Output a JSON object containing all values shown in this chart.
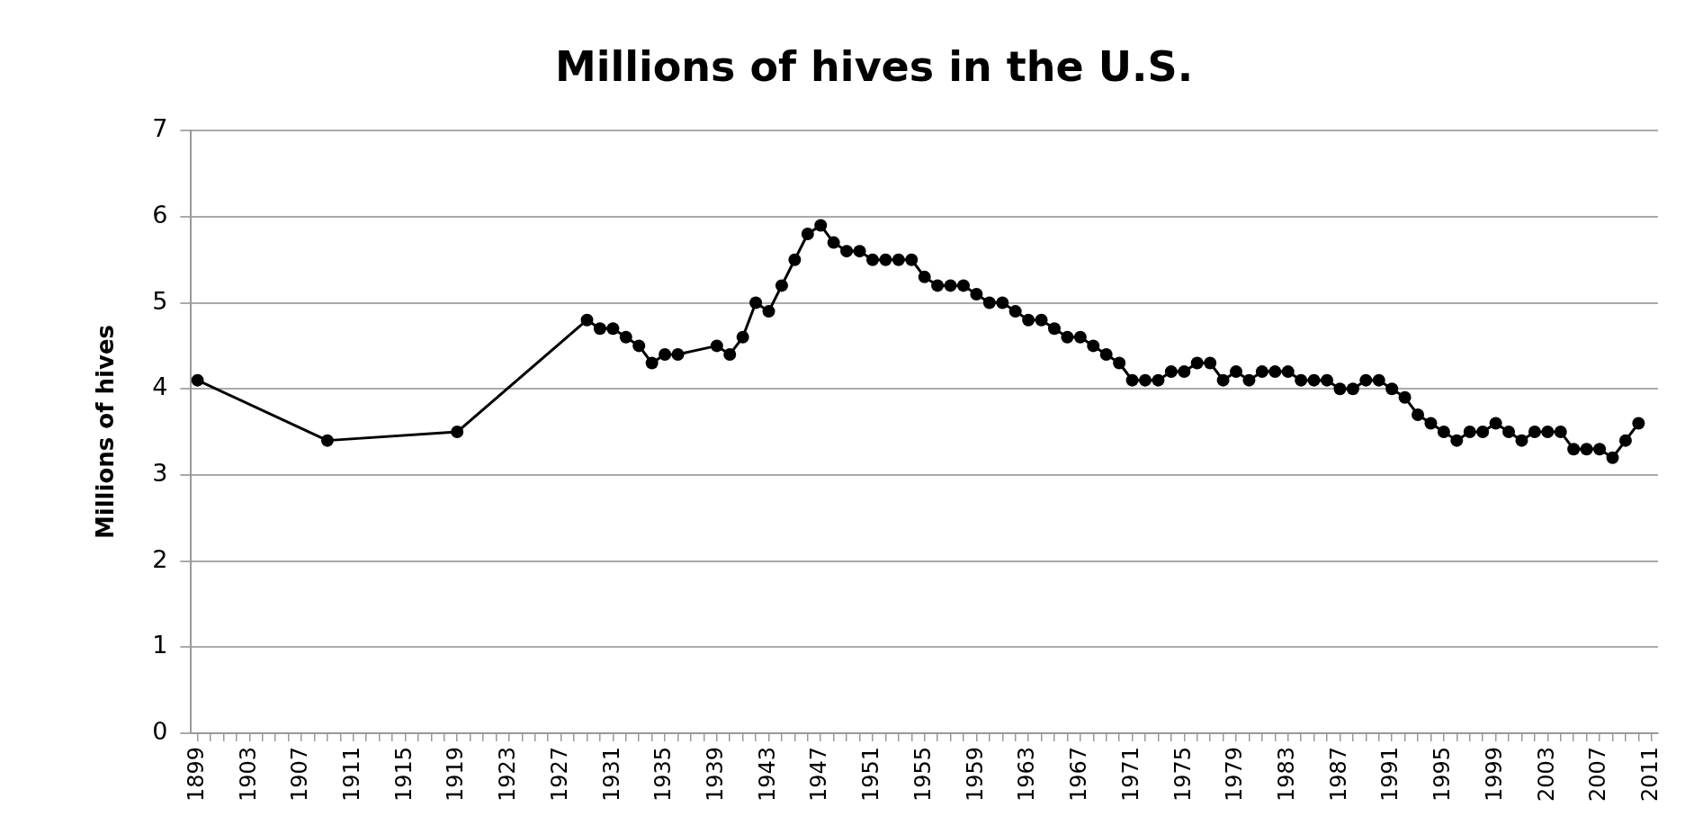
{
  "chart_data": {
    "type": "line",
    "title": "Millions of hives in the U.S.",
    "ylabel": "Millions of hives",
    "x": [
      1899,
      1909,
      1919,
      1929,
      1930,
      1931,
      1932,
      1933,
      1934,
      1935,
      1936,
      1939,
      1940,
      1941,
      1942,
      1943,
      1944,
      1945,
      1946,
      1947,
      1948,
      1949,
      1950,
      1951,
      1952,
      1953,
      1954,
      1955,
      1956,
      1957,
      1958,
      1959,
      1960,
      1961,
      1962,
      1963,
      1964,
      1965,
      1966,
      1967,
      1968,
      1969,
      1970,
      1971,
      1972,
      1973,
      1974,
      1975,
      1976,
      1977,
      1978,
      1979,
      1980,
      1981,
      1982,
      1983,
      1984,
      1985,
      1986,
      1987,
      1988,
      1989,
      1990,
      1991,
      1992,
      1993,
      1994,
      1995,
      1996,
      1997,
      1998,
      1999,
      2000,
      2001,
      2002,
      2003,
      2004,
      2005,
      2006,
      2007,
      2008,
      2009,
      2010
    ],
    "series": [
      {
        "color": "#000000",
        "values": [
          4.1,
          3.4,
          3.5,
          4.8,
          4.7,
          4.7,
          4.6,
          4.5,
          4.3,
          4.4,
          4.4,
          4.5,
          4.4,
          4.6,
          5.0,
          4.9,
          5.2,
          5.5,
          5.8,
          5.9,
          5.7,
          5.6,
          5.6,
          5.5,
          5.5,
          5.5,
          5.5,
          5.3,
          5.2,
          5.2,
          5.2,
          5.1,
          5.0,
          5.0,
          4.9,
          4.8,
          4.8,
          4.7,
          4.6,
          4.6,
          4.5,
          4.4,
          4.3,
          4.1,
          4.1,
          4.1,
          4.2,
          4.2,
          4.3,
          4.3,
          4.1,
          4.2,
          4.1,
          4.2,
          4.2,
          4.2,
          4.1,
          4.1,
          4.1,
          4.0,
          4.0,
          4.1,
          4.1,
          4.0,
          3.9,
          3.7,
          3.6,
          3.5,
          3.4,
          3.5,
          3.5,
          3.6,
          3.5,
          3.4,
          3.5,
          3.5,
          3.5,
          3.3,
          3.3,
          3.3,
          3.2,
          3.4,
          3.6
        ]
      }
    ],
    "xlim": [
      1898.5,
      2011.5
    ],
    "xticks": [
      1899,
      {
        "value": 1900,
        "label": null
      },
      {
        "value": 1901,
        "label": null
      },
      {
        "value": 1902,
        "label": null
      },
      1903,
      {
        "value": 1904,
        "label": null
      },
      {
        "value": 1905,
        "label": null
      },
      {
        "value": 1906,
        "label": null
      },
      1907,
      {
        "value": 1908,
        "label": null
      },
      {
        "value": 1909,
        "label": null
      },
      {
        "value": 1910,
        "label": null
      },
      1911,
      {
        "value": 1912,
        "label": null
      },
      {
        "value": 1913,
        "label": null
      },
      {
        "value": 1914,
        "label": null
      },
      1915,
      {
        "value": 1916,
        "label": null
      },
      {
        "value": 1917,
        "label": null
      },
      {
        "value": 1918,
        "label": null
      },
      1919,
      {
        "value": 1920,
        "label": null
      },
      {
        "value": 1921,
        "label": null
      },
      {
        "value": 1922,
        "label": null
      },
      1923,
      {
        "value": 1924,
        "label": null
      },
      {
        "value": 1925,
        "label": null
      },
      {
        "value": 1926,
        "label": null
      },
      1927,
      {
        "value": 1928,
        "label": null
      },
      {
        "value": 1929,
        "label": null
      },
      {
        "value": 1930,
        "label": null
      },
      1931,
      {
        "value": 1932,
        "label": null
      },
      {
        "value": 1933,
        "label": null
      },
      {
        "value": 1934,
        "label": null
      },
      1935,
      {
        "value": 1936,
        "label": null
      },
      {
        "value": 1937,
        "label": null
      },
      {
        "value": 1938,
        "label": null
      },
      1939,
      {
        "value": 1940,
        "label": null
      },
      {
        "value": 1941,
        "label": null
      },
      {
        "value": 1942,
        "label": null
      },
      1943,
      {
        "value": 1944,
        "label": null
      },
      {
        "value": 1945,
        "label": null
      },
      {
        "value": 1946,
        "label": null
      },
      1947,
      {
        "value": 1948,
        "label": null
      },
      {
        "value": 1949,
        "label": null
      },
      {
        "value": 1950,
        "label": null
      },
      1951,
      {
        "value": 1952,
        "label": null
      },
      {
        "value": 1953,
        "label": null
      },
      {
        "value": 1954,
        "label": null
      },
      1955,
      {
        "value": 1956,
        "label": null
      },
      {
        "value": 1957,
        "label": null
      },
      {
        "value": 1958,
        "label": null
      },
      1959,
      {
        "value": 1960,
        "label": null
      },
      {
        "value": 1961,
        "label": null
      },
      {
        "value": 1962,
        "label": null
      },
      1963,
      {
        "value": 1964,
        "label": null
      },
      {
        "value": 1965,
        "label": null
      },
      {
        "value": 1966,
        "label": null
      },
      1967,
      {
        "value": 1968,
        "label": null
      },
      {
        "value": 1969,
        "label": null
      },
      {
        "value": 1970,
        "label": null
      },
      1971,
      {
        "value": 1972,
        "label": null
      },
      {
        "value": 1973,
        "label": null
      },
      {
        "value": 1974,
        "label": null
      },
      1975,
      {
        "value": 1976,
        "label": null
      },
      {
        "value": 1977,
        "label": null
      },
      {
        "value": 1978,
        "label": null
      },
      1979,
      {
        "value": 1980,
        "label": null
      },
      {
        "value": 1981,
        "label": null
      },
      {
        "value": 1982,
        "label": null
      },
      1983,
      {
        "value": 1984,
        "label": null
      },
      {
        "value": 1985,
        "label": null
      },
      {
        "value": 1986,
        "label": null
      },
      1987,
      {
        "value": 1988,
        "label": null
      },
      {
        "value": 1989,
        "label": null
      },
      {
        "value": 1990,
        "label": null
      },
      1991,
      {
        "value": 1992,
        "label": null
      },
      {
        "value": 1993,
        "label": null
      },
      {
        "value": 1994,
        "label": null
      },
      1995,
      {
        "value": 1996,
        "label": null
      },
      {
        "value": 1997,
        "label": null
      },
      {
        "value": 1998,
        "label": null
      },
      1999,
      {
        "value": 2000,
        "label": null
      },
      {
        "value": 2001,
        "label": null
      },
      {
        "value": 2002,
        "label": null
      },
      2003,
      {
        "value": 2004,
        "label": null
      },
      {
        "value": 2005,
        "label": null
      },
      {
        "value": 2006,
        "label": null
      },
      2007,
      {
        "value": 2008,
        "label": null
      },
      {
        "value": 2009,
        "label": null
      },
      {
        "value": 2010,
        "label": null
      },
      2011
    ],
    "ylim": [
      0,
      7
    ],
    "yticks": [
      0,
      1,
      2,
      3,
      4,
      5,
      6,
      7
    ],
    "grid": "y",
    "legend": false,
    "marker": "circle",
    "line_style": "solid"
  }
}
